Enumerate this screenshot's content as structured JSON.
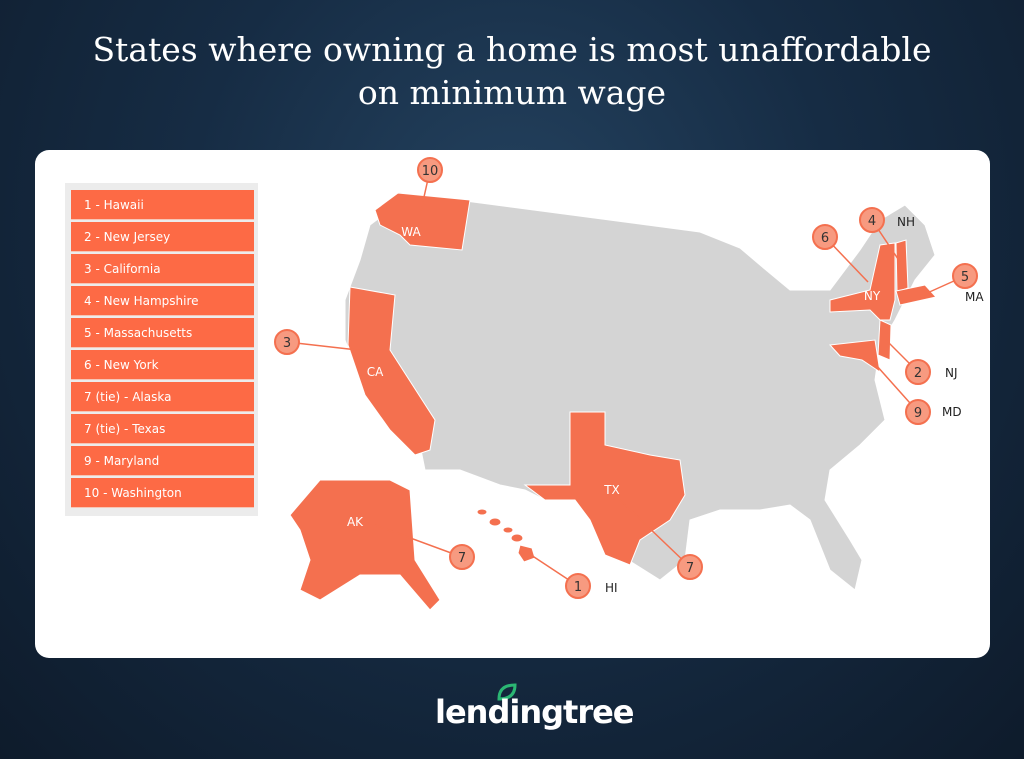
{
  "title_line1": "States where owning a home is most unaffordable",
  "title_line2": "on minimum wage",
  "legend": [
    "1 - Hawaii",
    "2 - New Jersey",
    "3 - California",
    "4 - New Hampshire",
    "5 - Massachusetts",
    "6 - New York",
    "7 (tie) - Alaska",
    "7 (tie) - Texas",
    "9 - Maryland",
    "10 - Washington"
  ],
  "map": {
    "highlight_color": "#f4704f",
    "base_color": "#d4d4d4",
    "states": [
      {
        "abbr": "HI",
        "rank": "1"
      },
      {
        "abbr": "NJ",
        "rank": "2"
      },
      {
        "abbr": "CA",
        "rank": "3"
      },
      {
        "abbr": "NH",
        "rank": "4"
      },
      {
        "abbr": "MA",
        "rank": "5"
      },
      {
        "abbr": "NY",
        "rank": "6"
      },
      {
        "abbr": "AK",
        "rank": "7"
      },
      {
        "abbr": "TX",
        "rank": "7"
      },
      {
        "abbr": "MD",
        "rank": "9"
      },
      {
        "abbr": "WA",
        "rank": "10"
      }
    ]
  },
  "brand": {
    "name": "lendingtree",
    "leaf_color": "#2bb673"
  }
}
